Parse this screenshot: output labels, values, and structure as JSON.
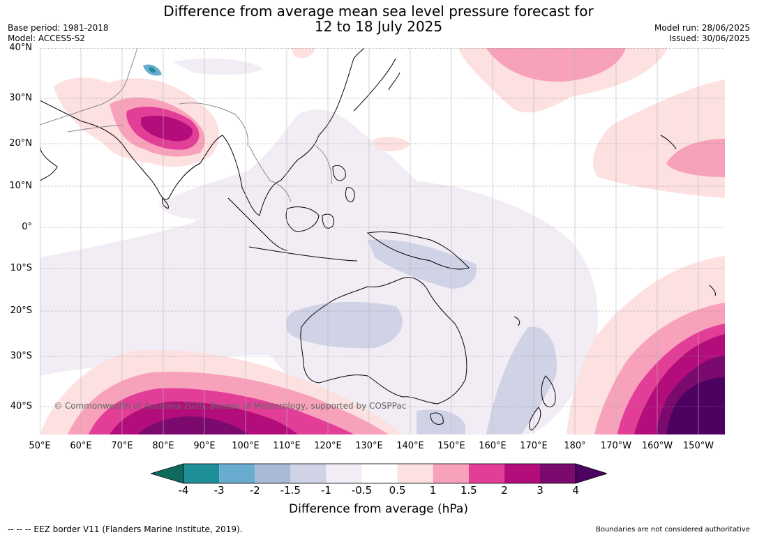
{
  "header": {
    "title_line1": "Difference from average mean sea level pressure forecast for",
    "title_line2": "12 to 18 July 2025",
    "base_period": "Base period: 1981-2018",
    "model": "Model: ACCESS-S2",
    "model_run": "Model run: 28/06/2025",
    "issued": "Issued: 30/06/2025"
  },
  "map": {
    "lat_labels": [
      "40°N",
      "30°N",
      "20°N",
      "10°N",
      "0°",
      "10°S",
      "20°S",
      "30°S",
      "40°S"
    ],
    "lon_labels": [
      "50°E",
      "60°E",
      "70°E",
      "80°E",
      "90°E",
      "100°E",
      "110°E",
      "120°E",
      "130°E",
      "140°E",
      "150°E",
      "160°E",
      "170°E",
      "180°",
      "170°W",
      "160°W",
      "150°W"
    ],
    "copyright": "© Commonwealth of Australia 2025, Bureau of Meteorology, supported by COSPPac",
    "ocean_color": "#ffffff",
    "land_outline_color": "#000000",
    "border_color": "#8a8a8a",
    "grid_color": "#777777"
  },
  "colorbar": {
    "labels": [
      "-4",
      "-3",
      "-2",
      "-1.5",
      "-1",
      "-0.5",
      "0.5",
      "1",
      "1.5",
      "2",
      "3",
      "4"
    ],
    "colors": [
      "#0e6b5c",
      "#1e8f98",
      "#6aabd0",
      "#a9b9d6",
      "#d0d3e6",
      "#f2edf5",
      "#ffffff",
      "#fde0e0",
      "#f8a1bb",
      "#e23d97",
      "#b30d7c",
      "#7b0a6f",
      "#4d0160"
    ],
    "title": "Difference from average (hPa)"
  },
  "footer": {
    "eez_note": "--  --  -- EEZ border V11 (Flanders Marine Institute, 2019).",
    "boundaries_note": "Boundaries are not considered authoritative"
  }
}
